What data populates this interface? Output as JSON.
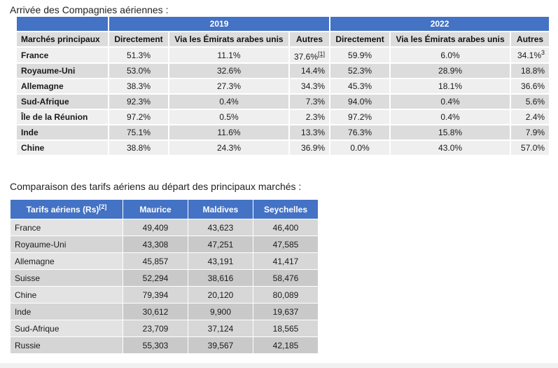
{
  "section1": {
    "heading": "Arrivée des Compagnies aériennes :",
    "years": [
      "2019",
      "2022"
    ],
    "columns": [
      "Marchés principaux",
      "Directement",
      "Via les Émirats arabes unis",
      "Autres",
      "Directement",
      "Via les Émirats arabes unis",
      "Autres"
    ],
    "rows": [
      {
        "market": "France",
        "d19": "51.3%",
        "u19": "11.1%",
        "a19": "37.6%",
        "a19_sup": "[1]",
        "d22": "59.9%",
        "u22": "6.0%",
        "a22": "34.1%",
        "a22_sup": "3"
      },
      {
        "market": "Royaume-Uni",
        "d19": "53.0%",
        "u19": "32.6%",
        "a19": "14.4%",
        "d22": "52.3%",
        "u22": "28.9%",
        "a22": "18.8%"
      },
      {
        "market": "Allemagne",
        "d19": "38.3%",
        "u19": "27.3%",
        "a19": "34.3%",
        "d22": "45.3%",
        "u22": "18.1%",
        "a22": "36.6%"
      },
      {
        "market": "Sud-Afrique",
        "d19": "92.3%",
        "u19": "0.4%",
        "a19": "7.3%",
        "d22": "94.0%",
        "u22": "0.4%",
        "a22": "5.6%"
      },
      {
        "market": "Île de la Réunion",
        "d19": "97.2%",
        "u19": "0.5%",
        "a19": "2.3%",
        "d22": "97.2%",
        "u22": "0.4%",
        "a22": "2.4%"
      },
      {
        "market": "Inde",
        "d19": "75.1%",
        "u19": "11.6%",
        "a19": "13.3%",
        "d22": "76.3%",
        "u22": "15.8%",
        "a22": "7.9%"
      },
      {
        "market": "Chine",
        "d19": "38.8%",
        "u19": "24.3%",
        "a19": "36.9%",
        "d22": "0.0%",
        "u22": "43.0%",
        "a22": "57.0%"
      }
    ]
  },
  "section2": {
    "heading": "Comparaison des tarifs aériens au départ des principaux marchés :",
    "columns": {
      "label": "Tarifs aériens (Rs)",
      "label_sup": "[2]",
      "c1": "Maurice",
      "c2": "Maldives",
      "c3": "Seychelles"
    },
    "rows": [
      {
        "name": "France",
        "v1": "49,409",
        "v2": "43,623",
        "v3": "46,400"
      },
      {
        "name": "Royaume-Uni",
        "v1": "43,308",
        "v2": "47,251",
        "v3": "47,585"
      },
      {
        "name": "Allemagne",
        "v1": "45,857",
        "v2": "43,191",
        "v3": "41,417"
      },
      {
        "name": "Suisse",
        "v1": "52,294",
        "v2": "38,616",
        "v3": "58,476"
      },
      {
        "name": "Chine",
        "v1": "79,394",
        "v2": "20,120",
        "v3": "80,089"
      },
      {
        "name": "Inde",
        "v1": "30,612",
        "v2": "9,900",
        "v3": "19,637"
      },
      {
        "name": "Sud-Afrique",
        "v1": "23,709",
        "v2": "37,124",
        "v3": "18,565"
      },
      {
        "name": "Russie",
        "v1": "55,303",
        "v2": "39,567",
        "v3": "42,185"
      }
    ]
  }
}
